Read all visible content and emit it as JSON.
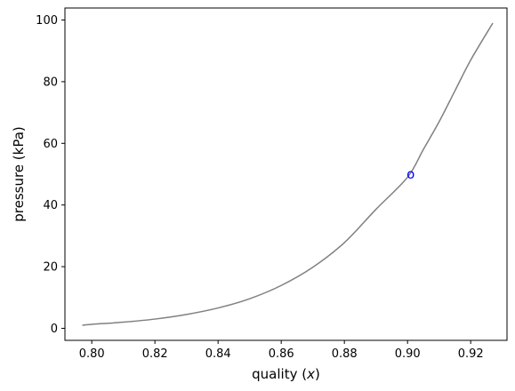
{
  "chart_data": {
    "type": "line",
    "title": "",
    "xlabel": "quality (",
    "xlabel_var": "x",
    "xlabel_close": ")",
    "ylabel": "pressure (kPa)",
    "xlim": [
      0.7915,
      0.9315
    ],
    "ylim": [
      -3.9,
      103.9
    ],
    "xticks": [
      0.8,
      0.82,
      0.84,
      0.86,
      0.88,
      0.9,
      0.92
    ],
    "xtick_labels": [
      "0.80",
      "0.82",
      "0.84",
      "0.86",
      "0.88",
      "0.90",
      "0.92"
    ],
    "yticks": [
      0,
      20,
      40,
      60,
      80,
      100
    ],
    "ytick_labels": [
      "0",
      "20",
      "40",
      "60",
      "80",
      "100"
    ],
    "grid": false,
    "series": [
      {
        "color": "#808080",
        "x": [
          0.797,
          0.8,
          0.81,
          0.82,
          0.83,
          0.84,
          0.85,
          0.86,
          0.87,
          0.88,
          0.89,
          0.9,
          0.905,
          0.91,
          0.915,
          0.92,
          0.927
        ],
        "y": [
          1.0,
          1.3,
          2.0,
          3.0,
          4.5,
          6.6,
          9.6,
          13.9,
          19.8,
          27.8,
          38.6,
          49.0,
          58.0,
          67.0,
          77.0,
          87.0,
          99.0
        ]
      }
    ],
    "annotations": [
      {
        "text": "o",
        "x": 0.901,
        "y": 50.0,
        "color": "#0000ff"
      }
    ]
  }
}
